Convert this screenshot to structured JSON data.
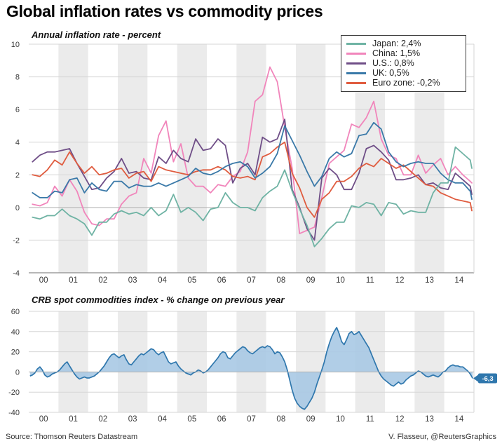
{
  "title": "Global inflation rates vs commodity prices",
  "footer": {
    "source": "Source: Thomson Reuters Datastream",
    "credit": "V. Flasseur, @ReutersGraphics"
  },
  "palette": {
    "band_gray": "#ebebeb",
    "grid_light": "#d6d6d6",
    "grid_zero": "#b0b0b0",
    "axis_line": "#8c8c8c",
    "tick_text": "#3a3a3a",
    "crb_line": "#2f77ad",
    "crb_fill": "#a9c9e4",
    "tag_blue": "#2f77ad",
    "tag_text": "#ffffff"
  },
  "chart_data": [
    {
      "type": "line",
      "title": "Annual inflation rate - percent",
      "x_range_years": [
        2000,
        2015
      ],
      "x_tick_labels": [
        "00",
        "01",
        "02",
        "03",
        "04",
        "05",
        "06",
        "07",
        "08",
        "09",
        "10",
        "11",
        "12",
        "13",
        "14"
      ],
      "points_per_year": 4,
      "ylim": [
        -4,
        10
      ],
      "yticks": [
        10,
        8,
        6,
        4,
        2,
        0,
        -2,
        -4
      ],
      "grid": true,
      "legend_position": "top-right",
      "draw_order": [
        1,
        2,
        4,
        3,
        0
      ],
      "series": [
        {
          "name": "Japan",
          "label": "Japan: 2,4%",
          "end_value": 2.4,
          "color": "#6fb3a4",
          "values": [
            -0.6,
            -0.7,
            -0.5,
            -0.5,
            -0.1,
            -0.5,
            -0.7,
            -1.0,
            -1.7,
            -0.9,
            -0.9,
            -0.4,
            -0.2,
            -0.4,
            -0.3,
            -0.5,
            0.0,
            -0.5,
            -0.2,
            0.8,
            -0.3,
            0.0,
            -0.3,
            -0.8,
            -0.1,
            0.0,
            0.9,
            0.3,
            0.0,
            0.0,
            -0.2,
            0.6,
            1.0,
            1.3,
            2.3,
            1.0,
            -0.1,
            -1.1,
            -2.4,
            -1.9,
            -1.3,
            -0.9,
            -0.9,
            0.1,
            0.0,
            0.3,
            0.2,
            -0.5,
            0.3,
            0.2,
            -0.4,
            -0.2,
            -0.3,
            -0.3,
            0.9,
            1.5,
            1.5,
            3.7,
            3.3,
            2.9,
            2.4
          ]
        },
        {
          "name": "China",
          "label": "China: 1,5%",
          "end_value": 1.5,
          "color": "#f185bb",
          "values": [
            0.2,
            0.1,
            0.3,
            1.3,
            0.7,
            1.7,
            1.0,
            -0.3,
            -1.0,
            -1.1,
            -0.7,
            -0.7,
            0.2,
            0.7,
            0.9,
            3.0,
            2.1,
            4.4,
            5.3,
            2.8,
            3.9,
            1.8,
            1.3,
            1.3,
            0.9,
            1.4,
            1.3,
            1.9,
            2.2,
            3.4,
            6.5,
            6.9,
            8.6,
            7.7,
            4.9,
            2.4,
            -1.6,
            -1.4,
            -1.2,
            0.6,
            2.7,
            3.1,
            3.5,
            5.1,
            4.9,
            5.5,
            6.5,
            4.2,
            3.2,
            3.0,
            2.0,
            2.0,
            3.2,
            2.1,
            2.6,
            3.0,
            2.0,
            2.5,
            2.0,
            1.6,
            1.5
          ]
        },
        {
          "name": "U.S.",
          "label": "U.S.: 0,8%",
          "end_value": 0.8,
          "color": "#6f4e87",
          "values": [
            2.8,
            3.2,
            3.4,
            3.4,
            3.5,
            3.6,
            2.7,
            1.9,
            1.1,
            1.2,
            1.8,
            2.2,
            3.0,
            2.1,
            2.2,
            1.8,
            1.7,
            3.1,
            2.7,
            3.5,
            3.0,
            2.8,
            4.2,
            3.5,
            3.6,
            4.2,
            3.8,
            1.5,
            2.4,
            2.7,
            2.0,
            4.3,
            4.0,
            4.2,
            5.4,
            1.1,
            0.0,
            -1.3,
            -2.0,
            1.8,
            2.4,
            2.0,
            1.1,
            1.1,
            2.1,
            3.6,
            3.8,
            3.4,
            2.9,
            1.7,
            1.7,
            1.8,
            2.0,
            1.4,
            1.5,
            1.2,
            1.1,
            2.1,
            1.7,
            1.3,
            0.8
          ]
        },
        {
          "name": "UK",
          "label": "UK: 0,5%",
          "end_value": 0.5,
          "color": "#3a79a8",
          "values": [
            0.9,
            0.6,
            0.6,
            1.0,
            0.9,
            1.7,
            1.8,
            0.9,
            1.5,
            1.1,
            1.0,
            1.6,
            1.6,
            1.2,
            1.4,
            1.3,
            1.3,
            1.5,
            1.3,
            1.5,
            1.7,
            1.9,
            2.4,
            2.1,
            2.0,
            2.2,
            2.5,
            2.7,
            2.8,
            2.5,
            1.8,
            2.1,
            2.5,
            3.3,
            5.0,
            4.1,
            3.2,
            2.2,
            1.3,
            1.9,
            3.0,
            3.4,
            3.1,
            3.3,
            4.4,
            4.5,
            5.2,
            4.8,
            3.4,
            2.8,
            2.5,
            2.7,
            2.8,
            2.7,
            2.7,
            2.1,
            1.7,
            1.5,
            1.5,
            1.0,
            0.5
          ]
        },
        {
          "name": "Euro zone",
          "label": "Euro zone: -0,2%",
          "end_value": -0.2,
          "color": "#e05c3f",
          "values": [
            2.0,
            1.9,
            2.3,
            2.9,
            2.6,
            3.4,
            2.7,
            2.1,
            2.5,
            2.0,
            2.1,
            2.3,
            2.4,
            1.8,
            2.1,
            2.2,
            1.6,
            2.5,
            2.3,
            2.2,
            2.1,
            2.0,
            2.2,
            2.3,
            2.3,
            2.5,
            2.3,
            1.9,
            1.8,
            1.9,
            1.7,
            3.1,
            3.3,
            3.7,
            4.0,
            2.1,
            1.2,
            0.0,
            -0.6,
            0.5,
            0.9,
            1.6,
            1.6,
            1.9,
            2.4,
            2.7,
            2.5,
            3.0,
            2.7,
            2.4,
            2.6,
            2.2,
            1.8,
            1.4,
            1.3,
            0.9,
            0.7,
            0.5,
            0.4,
            0.3,
            -0.2
          ]
        }
      ]
    },
    {
      "type": "area",
      "title": "CRB spot commodities index - % change on previous year",
      "x_range_years": [
        2000,
        2015
      ],
      "x_tick_labels": [
        "00",
        "01",
        "02",
        "03",
        "04",
        "05",
        "06",
        "07",
        "08",
        "09",
        "10",
        "11",
        "12",
        "13",
        "14"
      ],
      "points_per_year": 12,
      "ylim": [
        -40,
        60
      ],
      "yticks": [
        60,
        40,
        20,
        0,
        -20,
        -40
      ],
      "grid": true,
      "end_label": "-6,3",
      "end_value": -6.3,
      "values": [
        -4,
        -3,
        -1,
        3,
        5,
        2,
        -3,
        -5,
        -4,
        -2,
        -1,
        0,
        2,
        5,
        8,
        10,
        6,
        2,
        -2,
        -5,
        -7,
        -6,
        -5,
        -6,
        -6,
        -5,
        -4,
        -2,
        0,
        3,
        6,
        10,
        14,
        17,
        18,
        16,
        14,
        16,
        17,
        12,
        8,
        7,
        10,
        13,
        16,
        18,
        17,
        19,
        21,
        23,
        22,
        19,
        17,
        19,
        20,
        15,
        10,
        8,
        9,
        10,
        6,
        3,
        1,
        -1,
        -2,
        -3,
        -1,
        0,
        2,
        1,
        -1,
        0,
        2,
        5,
        8,
        11,
        14,
        18,
        20,
        19,
        14,
        13,
        16,
        19,
        21,
        23,
        25,
        24,
        21,
        19,
        18,
        20,
        22,
        24,
        25,
        24,
        26,
        25,
        22,
        18,
        20,
        19,
        15,
        10,
        2,
        -8,
        -18,
        -26,
        -31,
        -34,
        -36,
        -37,
        -34,
        -30,
        -26,
        -20,
        -12,
        -5,
        2,
        10,
        20,
        28,
        35,
        40,
        44,
        38,
        30,
        27,
        32,
        38,
        40,
        37,
        38,
        40,
        36,
        32,
        28,
        24,
        18,
        12,
        6,
        0,
        -4,
        -7,
        -9,
        -11,
        -13,
        -14,
        -12,
        -10,
        -12,
        -11,
        -8,
        -6,
        -4,
        -3,
        -1,
        1,
        0,
        -2,
        -4,
        -5,
        -4,
        -3,
        -4,
        -5,
        -3,
        0,
        1,
        4,
        6,
        7,
        6,
        6,
        5,
        5,
        3,
        1,
        -2,
        -6.3
      ]
    }
  ]
}
